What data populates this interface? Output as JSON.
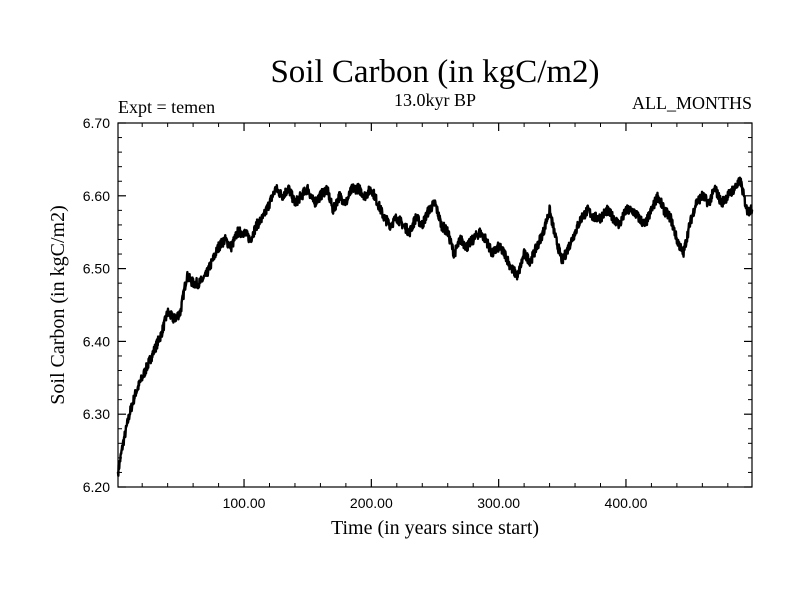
{
  "chart_data": {
    "type": "line",
    "title": "Soil Carbon (in kgC/m2)",
    "subtitle_left": "Expt = temen",
    "subtitle_center": "13.0kyr BP",
    "subtitle_right": "ALL_MONTHS",
    "xlabel": "Time (in years since start)",
    "ylabel": "Soil Carbon (in kgC/m2)",
    "xlim": [
      1,
      499
    ],
    "ylim": [
      6.2,
      6.7
    ],
    "xticks": [
      100,
      200,
      300,
      400
    ],
    "xtick_labels": [
      "100.00",
      "200.00",
      "300.00",
      "400.00"
    ],
    "yticks": [
      6.2,
      6.3,
      6.4,
      6.5,
      6.6,
      6.7
    ],
    "ytick_labels": [
      "6.20",
      "6.30",
      "6.40",
      "6.50",
      "6.60",
      "6.70"
    ],
    "grid": false,
    "line_color": "#000000",
    "series": [
      {
        "name": "Soil Carbon",
        "x": [
          1,
          5,
          10,
          15,
          20,
          25,
          30,
          35,
          40,
          45,
          50,
          55,
          60,
          65,
          70,
          75,
          80,
          85,
          90,
          95,
          100,
          105,
          110,
          115,
          120,
          125,
          130,
          135,
          140,
          145,
          150,
          155,
          160,
          165,
          170,
          175,
          180,
          185,
          190,
          195,
          200,
          205,
          210,
          215,
          220,
          225,
          230,
          235,
          240,
          245,
          250,
          255,
          260,
          265,
          270,
          275,
          280,
          285,
          290,
          295,
          300,
          305,
          310,
          315,
          320,
          325,
          330,
          335,
          340,
          345,
          350,
          355,
          360,
          365,
          370,
          375,
          380,
          385,
          390,
          395,
          400,
          405,
          410,
          415,
          420,
          425,
          430,
          435,
          440,
          445,
          450,
          455,
          460,
          465,
          470,
          475,
          480,
          485,
          490,
          495,
          499
        ],
        "values": [
          6.22,
          6.26,
          6.3,
          6.33,
          6.35,
          6.37,
          6.39,
          6.41,
          6.44,
          6.43,
          6.44,
          6.49,
          6.48,
          6.48,
          6.49,
          6.51,
          6.53,
          6.54,
          6.53,
          6.55,
          6.55,
          6.54,
          6.56,
          6.57,
          6.59,
          6.61,
          6.6,
          6.61,
          6.59,
          6.6,
          6.61,
          6.59,
          6.6,
          6.61,
          6.58,
          6.6,
          6.59,
          6.61,
          6.61,
          6.6,
          6.61,
          6.59,
          6.57,
          6.56,
          6.57,
          6.56,
          6.55,
          6.57,
          6.56,
          6.58,
          6.59,
          6.56,
          6.55,
          6.52,
          6.54,
          6.53,
          6.54,
          6.55,
          6.54,
          6.52,
          6.53,
          6.52,
          6.5,
          6.49,
          6.52,
          6.51,
          6.53,
          6.55,
          6.58,
          6.54,
          6.51,
          6.53,
          6.55,
          6.57,
          6.58,
          6.57,
          6.57,
          6.58,
          6.57,
          6.56,
          6.58,
          6.58,
          6.57,
          6.56,
          6.58,
          6.6,
          6.58,
          6.57,
          6.54,
          6.52,
          6.56,
          6.59,
          6.6,
          6.59,
          6.61,
          6.59,
          6.6,
          6.61,
          6.62,
          6.58,
          6.58
        ]
      }
    ]
  }
}
